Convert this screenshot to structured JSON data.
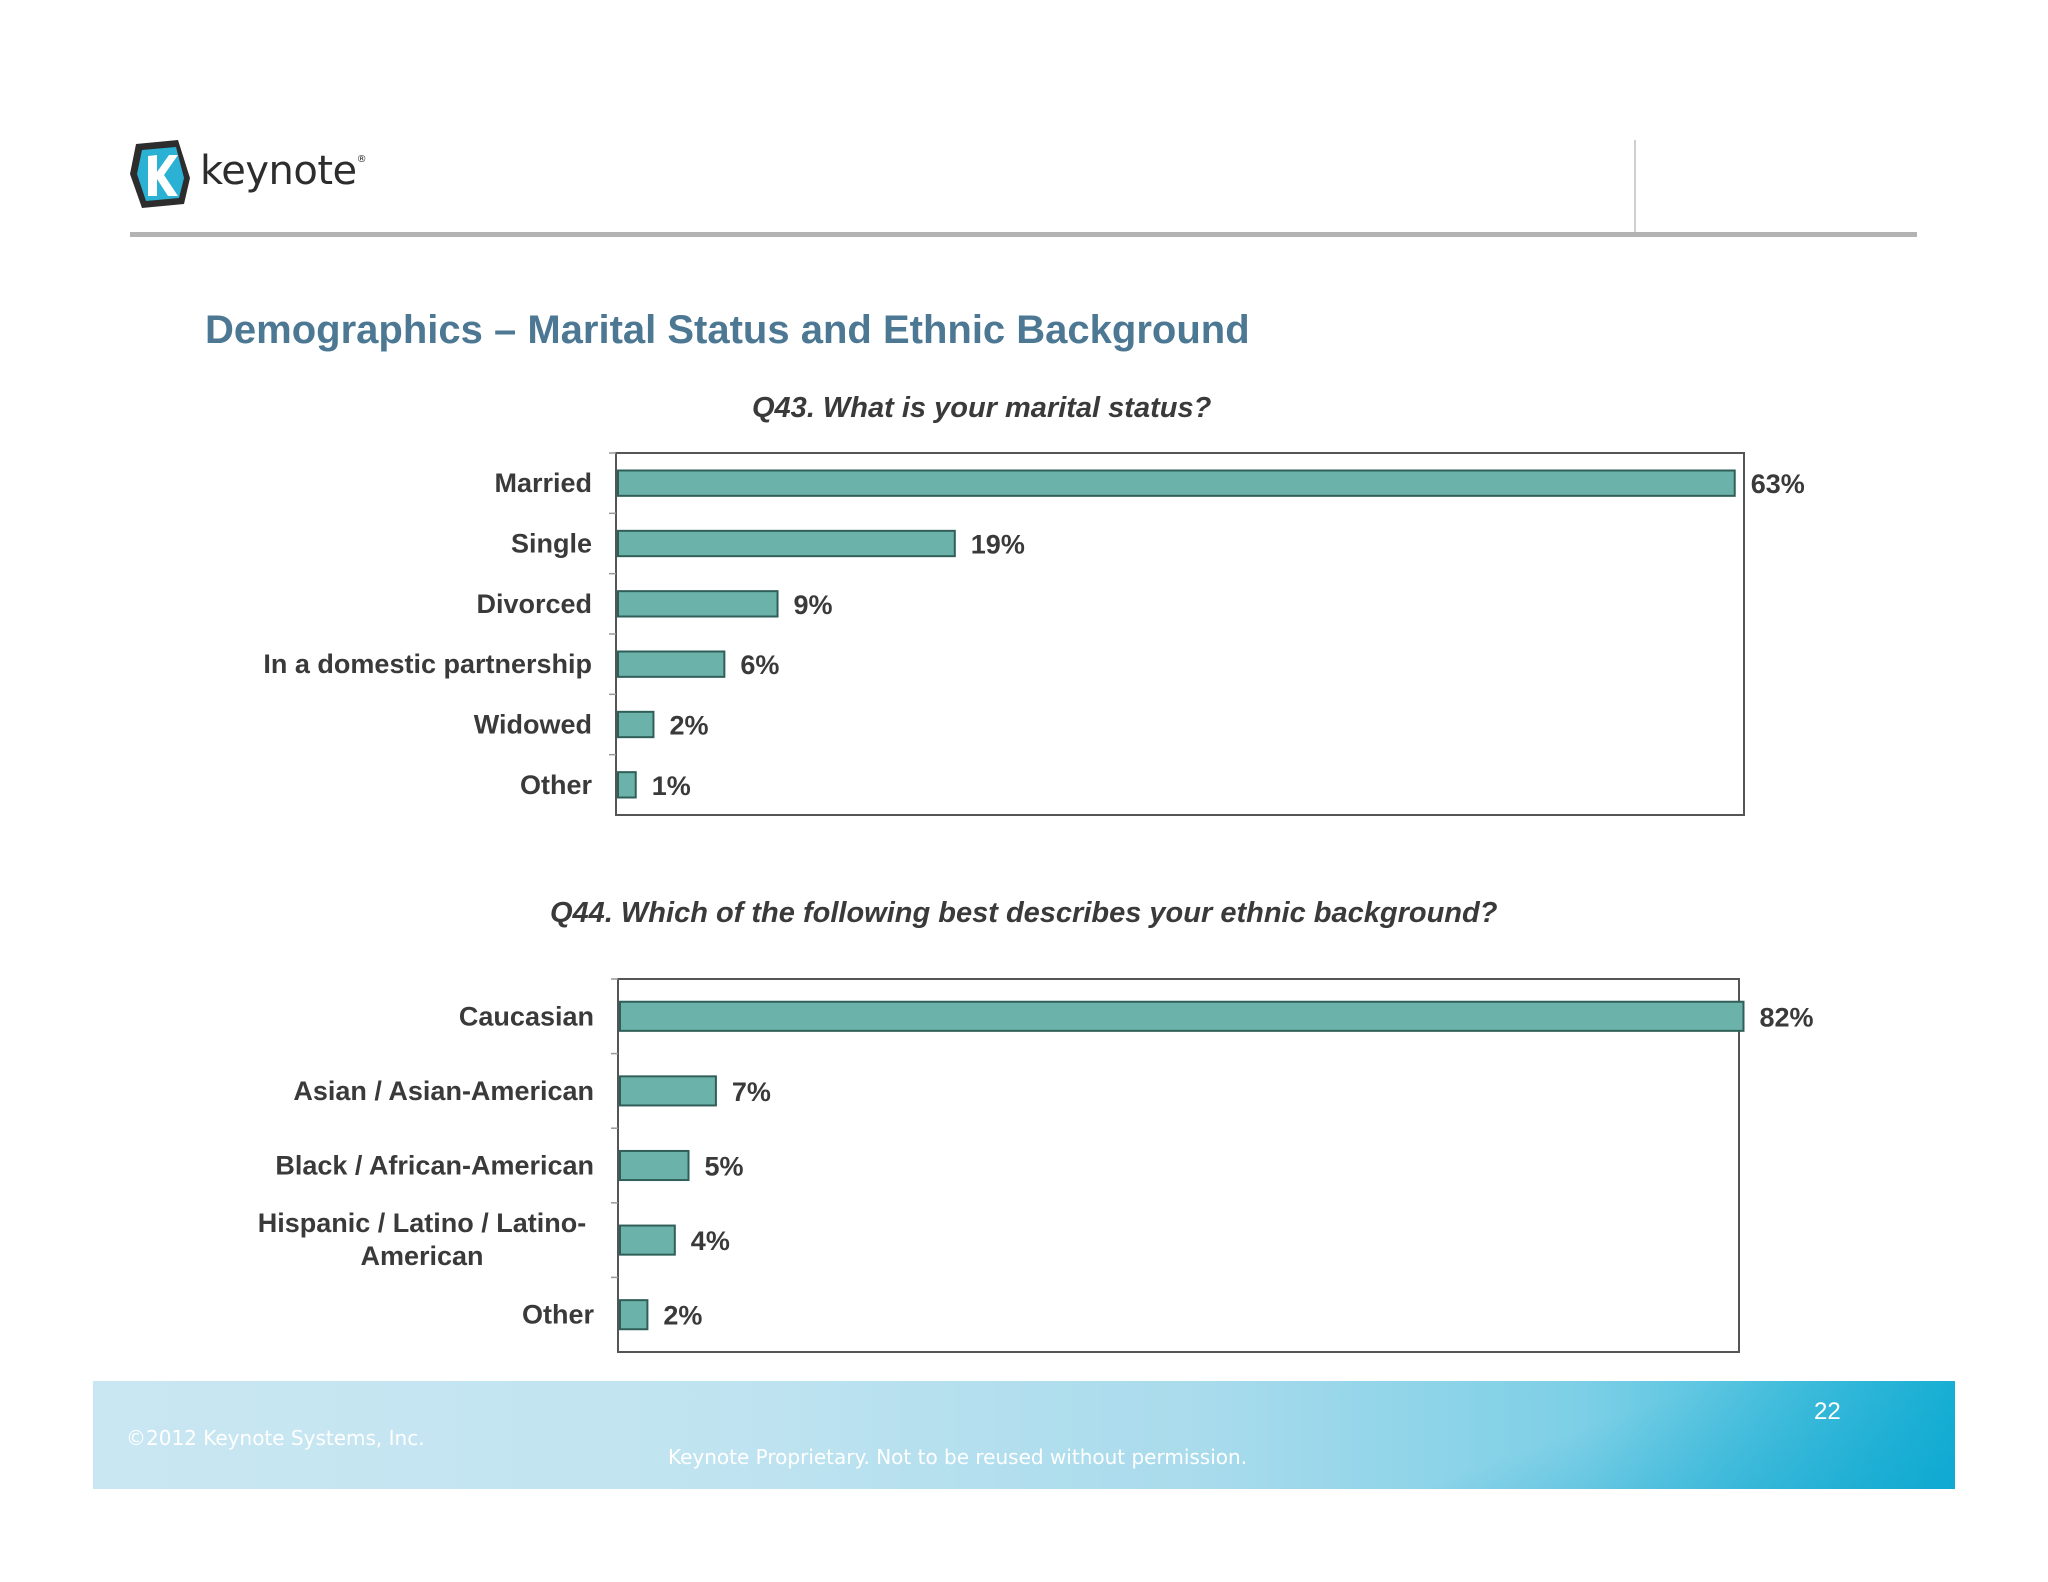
{
  "header": {
    "logo_text": "keynote",
    "logo_mark": "®"
  },
  "page": {
    "title": "Demographics – Marital Status and Ethnic Background",
    "page_number": "22"
  },
  "footer": {
    "copyright": "©2012 Keynote Systems, Inc.",
    "proprietary": "Keynote Proprietary. Not to be reused without permission."
  },
  "colors": {
    "bar_fill": "#6bb3aa",
    "bar_stroke": "#2f5f58",
    "title": "#4d7893",
    "text": "#3a3a3a"
  },
  "chart_data": [
    {
      "type": "bar",
      "orientation": "horizontal",
      "title": "Q43. What is your marital status?",
      "categories": [
        "Married",
        "Single",
        "Divorced",
        "In a domestic partnership",
        "Widowed",
        "Other"
      ],
      "values": [
        63,
        19,
        9,
        6,
        2,
        1
      ],
      "value_labels": [
        "63%",
        "19%",
        "9%",
        "6%",
        "2%",
        "1%"
      ],
      "xlim": [
        0,
        70
      ],
      "grid": false,
      "legend": "none"
    },
    {
      "type": "bar",
      "orientation": "horizontal",
      "title": "Q44. Which of the following best describes your ethnic background?",
      "categories": [
        "Caucasian",
        "Asian / Asian-American",
        "Black / African-American",
        "Hispanic / Latino / Latino-American",
        "Other"
      ],
      "category_lines": [
        [
          "Caucasian"
        ],
        [
          "Asian / Asian-American"
        ],
        [
          "Black / African-American"
        ],
        [
          "Hispanic / Latino / Latino-",
          "American"
        ],
        [
          "Other"
        ]
      ],
      "values": [
        82,
        7,
        5,
        4,
        2
      ],
      "value_labels": [
        "82%",
        "7%",
        "5%",
        "4%",
        "2%"
      ],
      "xlim": [
        0,
        90
      ],
      "grid": false,
      "legend": "none"
    }
  ]
}
